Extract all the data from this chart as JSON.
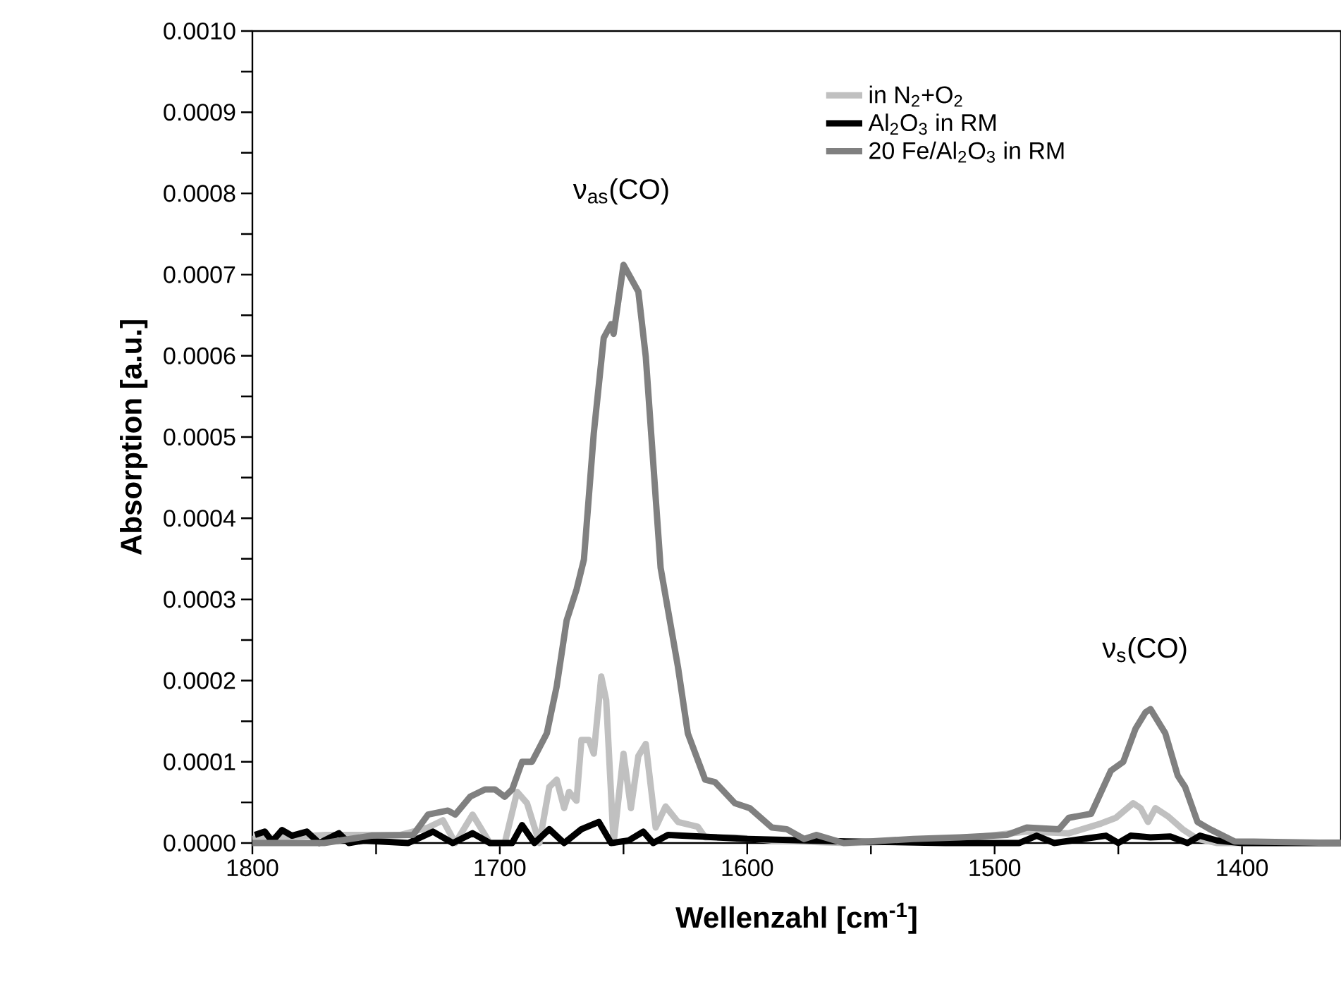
{
  "chart_data": {
    "type": "line",
    "xlabel": "Wellenzahl [cm$^{-1}$]",
    "ylabel": "Absorption [a.u.]",
    "xlim": [
      1800,
      1360
    ],
    "ylim": [
      0,
      0.001
    ],
    "xticks": [
      1800,
      {
        "value": 1750,
        "label": null
      },
      1700,
      {
        "value": 1650,
        "label": null
      },
      1600,
      {
        "value": 1550,
        "label": null
      },
      1500,
      {
        "value": 1450,
        "label": null
      },
      1400
    ],
    "yticks": [
      {
        "value": 0,
        "label": "0.0000"
      },
      {
        "value": 5e-05,
        "label": null
      },
      {
        "value": 0.0001,
        "label": "0.0001"
      },
      {
        "value": 0.00015,
        "label": null
      },
      {
        "value": 0.0002,
        "label": "0.0002"
      },
      {
        "value": 0.00025,
        "label": null
      },
      {
        "value": 0.0003,
        "label": "0.0003"
      },
      {
        "value": 0.00035,
        "label": null
      },
      {
        "value": 0.0004,
        "label": "0.0004"
      },
      {
        "value": 0.00045,
        "label": null
      },
      {
        "value": 0.0005,
        "label": "0.0005"
      },
      {
        "value": 0.00055,
        "label": null
      },
      {
        "value": 0.0006,
        "label": "0.0006"
      },
      {
        "value": 0.00065,
        "label": null
      },
      {
        "value": 0.0007,
        "label": "0.0007"
      },
      {
        "value": 0.00075,
        "label": null
      },
      {
        "value": 0.0008,
        "label": "0.0008"
      },
      {
        "value": 0.00085,
        "label": null
      },
      {
        "value": 0.0009,
        "label": "0.0009"
      },
      {
        "value": 0.00095,
        "label": null
      },
      {
        "value": 0.001,
        "label": "0.0010"
      }
    ],
    "legend": "top right",
    "grid": false,
    "marker": "none",
    "line_style": "solid",
    "series": [
      {
        "name": "in N$_{2}$+O$_{2}$",
        "color": "#c0c0c0",
        "x": [
          1800,
          1770,
          1740,
          1729,
          1723,
          1718,
          1711,
          1704,
          1698,
          1693,
          1689,
          1684,
          1680,
          1677,
          1674,
          1672,
          1669,
          1667,
          1664,
          1662,
          1659,
          1657,
          1654,
          1650,
          1647,
          1644,
          1641,
          1637,
          1633,
          1628,
          1620,
          1617,
          1605,
          1590,
          1560,
          1520,
          1487,
          1470,
          1457,
          1451,
          1444,
          1441,
          1438,
          1435,
          1430,
          1424,
          1418,
          1410,
          1360
        ],
        "values": [
          5e-06,
          1e-05,
          1e-05,
          1.9e-05,
          2.8e-05,
          0,
          3.5e-05,
          0,
          0,
          6.3e-05,
          4.9e-05,
          0,
          6.9e-05,
          7.8e-05,
          4.3e-05,
          6.3e-05,
          5.2e-05,
          0.000127,
          0.000127,
          0.00011,
          0.000205,
          0.000176,
          0,
          0.00011,
          4.3e-05,
          0.000107,
          0.000122,
          1.9e-05,
          4.5e-05,
          2.6e-05,
          2e-05,
          7e-06,
          7e-06,
          3e-06,
          0,
          3e-06,
          1.4e-05,
          1.2e-05,
          2.4e-05,
          3.1e-05,
          4.9e-05,
          4.3e-05,
          2.6e-05,
          4.3e-05,
          3.3e-05,
          1.7e-05,
          5e-06,
          0,
          0
        ]
      },
      {
        "name": "Al$_{2}$O$_{3}$ in RM",
        "color": "#000000",
        "x": [
          1799,
          1795,
          1792,
          1788,
          1784,
          1778,
          1773,
          1765,
          1761,
          1755,
          1737,
          1727,
          1719,
          1711,
          1704,
          1695,
          1691,
          1686,
          1680,
          1674,
          1667,
          1660,
          1655,
          1648,
          1642,
          1638,
          1632,
          1600,
          1560,
          1520,
          1490,
          1483,
          1476,
          1455,
          1450,
          1445,
          1437,
          1429,
          1422,
          1417,
          1410,
          1400,
          1360
        ],
        "values": [
          1e-05,
          1.4e-05,
          2e-06,
          1.6e-05,
          9e-06,
          1.4e-05,
          0,
          1.2e-05,
          0,
          3e-06,
          0,
          1.4e-05,
          0,
          1.2e-05,
          0,
          0,
          2.2e-05,
          0,
          1.7e-05,
          0,
          1.7e-05,
          2.6e-05,
          0,
          3e-06,
          1.4e-05,
          0,
          1e-05,
          5e-06,
          2e-06,
          0,
          0,
          9e-06,
          0,
          9e-06,
          0,
          9e-06,
          7e-06,
          8e-06,
          0,
          9e-06,
          3e-06,
          0,
          0
        ]
      },
      {
        "name": "20 Fe/Al$_{2}$O$_{3}$ in RM",
        "color": "#808080",
        "x": [
          1800,
          1771,
          1752,
          1735,
          1729,
          1721,
          1718,
          1712,
          1706,
          1702,
          1698,
          1695,
          1691,
          1687,
          1681,
          1677,
          1673,
          1669,
          1666,
          1662,
          1658,
          1655,
          1654,
          1650,
          1644,
          1641,
          1635,
          1628,
          1624,
          1617,
          1613,
          1605,
          1599,
          1590,
          1584,
          1577,
          1572,
          1561,
          1533,
          1514,
          1495,
          1487,
          1474,
          1470,
          1461,
          1453,
          1448,
          1443,
          1439,
          1437,
          1431,
          1426,
          1423,
          1418,
          1413,
          1403,
          1360
        ],
        "values": [
          0,
          0,
          9e-06,
          1e-05,
          3.5e-05,
          4e-05,
          3.5e-05,
          5.7e-05,
          6.6e-05,
          6.6e-05,
          5.7e-05,
          6.6e-05,
          0.0001,
          0.0001,
          0.000135,
          0.000193,
          0.000274,
          0.000312,
          0.000349,
          0.000505,
          0.000622,
          0.000639,
          0.000627,
          0.000712,
          0.000679,
          0.000599,
          0.000339,
          0.000217,
          0.000135,
          7.8e-05,
          7.5e-05,
          4.9e-05,
          4.3e-05,
          1.9e-05,
          1.7e-05,
          5e-06,
          1e-05,
          0,
          5e-06,
          7e-06,
          1e-05,
          1.9e-05,
          1.7e-05,
          3.1e-05,
          3.6e-05,
          8.9e-05,
          0.0001,
          0.000141,
          0.000161,
          0.000165,
          0.000135,
          8.3e-05,
          6.9e-05,
          2.6e-05,
          1.7e-05,
          2e-06,
          0
        ]
      }
    ],
    "annotations": [
      "ν$_{as}$(CO)",
      "ν$_{s}$(CO)"
    ]
  }
}
